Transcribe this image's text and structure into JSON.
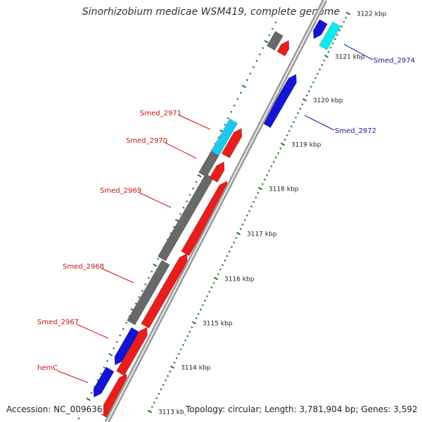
{
  "title": "Sinorhizobium medicae WSM419, complete genome",
  "footer": {
    "accession": "Accession: NC_009636",
    "summary": "Topology: circular; Length: 3,781,904 bp; Genes: 3,592"
  },
  "colors": {
    "forward_cds": "#e61e1e",
    "reverse_cds": "#1414d2",
    "other_feature": "#696969",
    "trna": "#20c8ee",
    "cyan_feature": "#10e8f0",
    "backbone": "#9a9a9a",
    "tick": "#1f7a1f",
    "label_left": "#cc1111",
    "label_right": "#1a1aa0"
  },
  "ticks": [
    {
      "label": "3113 kbp"
    },
    {
      "label": "3114 kbp"
    },
    {
      "label": "3115 kbp"
    },
    {
      "label": "3116 kbp"
    },
    {
      "label": "3117 kbp"
    },
    {
      "label": "3118 kbp"
    },
    {
      "label": "3119 kbp"
    },
    {
      "label": "3120 kbp"
    },
    {
      "label": "3121 kbp"
    },
    {
      "label": "3122 kbp"
    }
  ],
  "genes": [
    {
      "name": "hemC",
      "color": "red"
    },
    {
      "name": "Smed_2967",
      "color": "red"
    },
    {
      "name": "Smed_2968",
      "color": "red"
    },
    {
      "name": "Smed_2969",
      "color": "red"
    },
    {
      "name": "Smed_2970",
      "color": "red"
    },
    {
      "name": "Smed_2971",
      "color": "red"
    },
    {
      "name": "Smed_2972",
      "color": "blue"
    },
    {
      "name": "Smed_2974",
      "color": "blue"
    }
  ]
}
